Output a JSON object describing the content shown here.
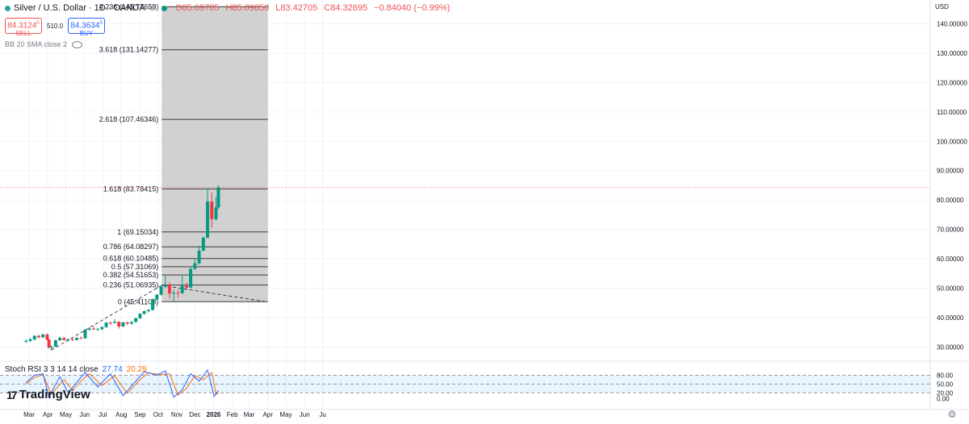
{
  "legend": {
    "symbol": "Silver / U.S. Dollar · 1D · OANDA",
    "open": "O85.09785",
    "high": "H85.09850",
    "low": "L83.42705",
    "close": "C84.32695",
    "change": "−0.84040 (−0.99%)"
  },
  "trade": {
    "sell_price": "84.3124",
    "sell_sup": "0",
    "sell_label": "SELL",
    "spread": "510.0",
    "buy_price": "84.3634",
    "buy_sup": "0",
    "buy_label": "BUY"
  },
  "indicators": {
    "bb": "BB 20 SMA close 2",
    "stoch_label": "Stoch RSI 3 3 14 14 close",
    "stoch_k": "27.74",
    "stoch_d": "20.29"
  },
  "currency": "USD",
  "logo": {
    "mark": "17",
    "text": "TradingView"
  },
  "colors": {
    "up": "#089981",
    "down": "#f23645",
    "fib_zone": "#d1d1d1",
    "k_line": "#2962ff",
    "d_line": "#ff6d00",
    "price_line": "#ef5350"
  },
  "chart_data": {
    "type": "candlestick",
    "price_axis": [
      "140.00000",
      "130.00000",
      "120.00000",
      "110.00000",
      "100.00000",
      "90.00000",
      "80.00000",
      "70.00000",
      "60.00000",
      "50.00000",
      "40.00000",
      "30.00000"
    ],
    "time_axis": [
      "Mar",
      "Apr",
      "May",
      "Jun",
      "Jul",
      "Aug",
      "Sep",
      "Oct",
      "Nov",
      "Dec",
      "2026",
      "Feb",
      "Mar",
      "Apr",
      "May",
      "Jun",
      "Ju"
    ],
    "fib_levels": [
      {
        "ratio": "0",
        "value": 45.41103,
        "label": "0 (45.41103)"
      },
      {
        "ratio": "0.236",
        "value": 51.06935,
        "label": "0.236 (51.06935)"
      },
      {
        "ratio": "0.382",
        "value": 54.51653,
        "label": "0.382 (54.51653)"
      },
      {
        "ratio": "0.5",
        "value": 57.31069,
        "label": "0.5 (57.31069)"
      },
      {
        "ratio": "0.618",
        "value": 60.10485,
        "label": "0.618 (60.10485)"
      },
      {
        "ratio": "0.786",
        "value": 64.08297,
        "label": "0.786 (64.08297)"
      },
      {
        "ratio": "1",
        "value": 69.15034,
        "label": "1 (69.15034)"
      },
      {
        "ratio": "1.618",
        "value": 83.78415,
        "label": "1.618 (83.78415)"
      },
      {
        "ratio": "2.618",
        "value": 107.46346,
        "label": "2.618 (107.46346)"
      },
      {
        "ratio": "3.618",
        "value": 131.14277,
        "label": "3.618 (131.14277)"
      },
      {
        "ratio": "4.236",
        "value": 145.77658,
        "label": "4.236 (145.77658)"
      }
    ],
    "fib_time_range": [
      "2025-10-07",
      "2026-04-01"
    ],
    "trend_points": [
      {
        "date": "2025-04-07",
        "value": 29.0
      },
      {
        "date": "2025-10-07",
        "value": 51.0
      },
      {
        "date": "2026-04-01",
        "value": 45.3
      }
    ],
    "candles": [
      {
        "date": "2025-02-24",
        "o": 32.0,
        "h": 32.6,
        "l": 31.4,
        "c": 32.1
      },
      {
        "date": "2025-03-03",
        "o": 32.1,
        "h": 33.1,
        "l": 31.7,
        "c": 32.6
      },
      {
        "date": "2025-03-10",
        "o": 32.6,
        "h": 34.0,
        "l": 32.3,
        "c": 33.8
      },
      {
        "date": "2025-03-17",
        "o": 33.8,
        "h": 34.2,
        "l": 33.0,
        "c": 33.3
      },
      {
        "date": "2025-03-24",
        "o": 33.3,
        "h": 34.5,
        "l": 33.0,
        "c": 34.3
      },
      {
        "date": "2025-03-31",
        "o": 34.3,
        "h": 34.6,
        "l": 32.3,
        "c": 32.5
      },
      {
        "date": "2025-04-03",
        "o": 32.5,
        "h": 32.8,
        "l": 29.5,
        "c": 29.8
      },
      {
        "date": "2025-04-07",
        "o": 29.8,
        "h": 30.5,
        "l": 28.8,
        "c": 30.2
      },
      {
        "date": "2025-04-14",
        "o": 30.2,
        "h": 32.5,
        "l": 30.0,
        "c": 32.3
      },
      {
        "date": "2025-04-21",
        "o": 32.3,
        "h": 33.5,
        "l": 32.0,
        "c": 33.1
      },
      {
        "date": "2025-04-28",
        "o": 33.1,
        "h": 33.4,
        "l": 32.1,
        "c": 32.4
      },
      {
        "date": "2025-05-05",
        "o": 32.4,
        "h": 33.0,
        "l": 31.9,
        "c": 32.6
      },
      {
        "date": "2025-05-12",
        "o": 32.6,
        "h": 33.0,
        "l": 32.1,
        "c": 32.4
      },
      {
        "date": "2025-05-19",
        "o": 32.4,
        "h": 33.4,
        "l": 32.2,
        "c": 33.1
      },
      {
        "date": "2025-05-26",
        "o": 33.1,
        "h": 33.6,
        "l": 32.7,
        "c": 33.0
      },
      {
        "date": "2025-06-02",
        "o": 33.0,
        "h": 36.0,
        "l": 32.8,
        "c": 35.9
      },
      {
        "date": "2025-06-09",
        "o": 35.9,
        "h": 36.8,
        "l": 35.5,
        "c": 36.3
      },
      {
        "date": "2025-06-16",
        "o": 36.3,
        "h": 37.1,
        "l": 35.8,
        "c": 36.0
      },
      {
        "date": "2025-06-23",
        "o": 36.0,
        "h": 36.5,
        "l": 35.6,
        "c": 36.1
      },
      {
        "date": "2025-06-30",
        "o": 36.1,
        "h": 37.0,
        "l": 35.7,
        "c": 36.8
      },
      {
        "date": "2025-07-07",
        "o": 36.8,
        "h": 38.5,
        "l": 36.5,
        "c": 38.3
      },
      {
        "date": "2025-07-14",
        "o": 38.3,
        "h": 38.8,
        "l": 37.5,
        "c": 38.2
      },
      {
        "date": "2025-07-21",
        "o": 38.2,
        "h": 39.5,
        "l": 38.0,
        "c": 38.6
      },
      {
        "date": "2025-07-28",
        "o": 38.6,
        "h": 38.8,
        "l": 36.3,
        "c": 37.0
      },
      {
        "date": "2025-08-04",
        "o": 37.0,
        "h": 38.5,
        "l": 36.8,
        "c": 38.4
      },
      {
        "date": "2025-08-11",
        "o": 38.4,
        "h": 38.6,
        "l": 37.4,
        "c": 38.0
      },
      {
        "date": "2025-08-18",
        "o": 38.0,
        "h": 38.8,
        "l": 37.5,
        "c": 38.5
      },
      {
        "date": "2025-08-25",
        "o": 38.5,
        "h": 40.0,
        "l": 38.3,
        "c": 39.8
      },
      {
        "date": "2025-09-01",
        "o": 39.8,
        "h": 41.5,
        "l": 39.6,
        "c": 41.3
      },
      {
        "date": "2025-09-08",
        "o": 41.3,
        "h": 42.4,
        "l": 41.0,
        "c": 42.2
      },
      {
        "date": "2025-09-15",
        "o": 42.2,
        "h": 43.0,
        "l": 41.8,
        "c": 42.6
      },
      {
        "date": "2025-09-22",
        "o": 42.6,
        "h": 46.5,
        "l": 42.4,
        "c": 46.2
      },
      {
        "date": "2025-09-29",
        "o": 46.2,
        "h": 48.0,
        "l": 45.8,
        "c": 47.8
      },
      {
        "date": "2025-10-06",
        "o": 47.8,
        "h": 51.0,
        "l": 47.5,
        "c": 50.5
      },
      {
        "date": "2025-10-13",
        "o": 50.5,
        "h": 54.5,
        "l": 50.0,
        "c": 51.3
      },
      {
        "date": "2025-10-20",
        "o": 51.3,
        "h": 52.0,
        "l": 46.5,
        "c": 48.2
      },
      {
        "date": "2025-10-27",
        "o": 48.2,
        "h": 49.5,
        "l": 45.5,
        "c": 48.5
      },
      {
        "date": "2025-11-03",
        "o": 48.5,
        "h": 49.5,
        "l": 46.8,
        "c": 48.3
      },
      {
        "date": "2025-11-10",
        "o": 48.3,
        "h": 54.5,
        "l": 48.0,
        "c": 50.8
      },
      {
        "date": "2025-11-17",
        "o": 50.8,
        "h": 52.0,
        "l": 49.5,
        "c": 50.2
      },
      {
        "date": "2025-11-24",
        "o": 50.2,
        "h": 57.0,
        "l": 50.0,
        "c": 56.6
      },
      {
        "date": "2025-12-01",
        "o": 56.6,
        "h": 59.8,
        "l": 56.2,
        "c": 58.5
      },
      {
        "date": "2025-12-08",
        "o": 58.5,
        "h": 64.5,
        "l": 58.0,
        "c": 62.8
      },
      {
        "date": "2025-12-15",
        "o": 62.8,
        "h": 67.5,
        "l": 62.5,
        "c": 67.2
      },
      {
        "date": "2025-12-22",
        "o": 67.2,
        "h": 84.0,
        "l": 67.0,
        "c": 79.5
      },
      {
        "date": "2025-12-29",
        "o": 79.5,
        "h": 82.5,
        "l": 70.5,
        "c": 73.5
      },
      {
        "date": "2026-01-05",
        "o": 73.5,
        "h": 81.0,
        "l": 73.0,
        "c": 77.5
      },
      {
        "date": "2026-01-09",
        "o": 77.5,
        "h": 85.1,
        "l": 77.0,
        "c": 84.3
      }
    ],
    "stoch_axis": [
      "80.00",
      "50.00",
      "20.00",
      "0.00"
    ],
    "stoch_k_series": [
      {
        "date": "2025-02-24",
        "v": 55
      },
      {
        "date": "2025-03-10",
        "v": 80
      },
      {
        "date": "2025-03-24",
        "v": 85
      },
      {
        "date": "2025-04-03",
        "v": 5
      },
      {
        "date": "2025-04-21",
        "v": 75
      },
      {
        "date": "2025-05-05",
        "v": 20
      },
      {
        "date": "2025-05-19",
        "v": 55
      },
      {
        "date": "2025-06-02",
        "v": 90
      },
      {
        "date": "2025-06-23",
        "v": 40
      },
      {
        "date": "2025-07-14",
        "v": 85
      },
      {
        "date": "2025-08-04",
        "v": 10
      },
      {
        "date": "2025-08-25",
        "v": 60
      },
      {
        "date": "2025-09-08",
        "v": 92
      },
      {
        "date": "2025-09-29",
        "v": 80
      },
      {
        "date": "2025-10-13",
        "v": 95
      },
      {
        "date": "2025-10-27",
        "v": 5
      },
      {
        "date": "2025-11-10",
        "v": 30
      },
      {
        "date": "2025-11-24",
        "v": 85
      },
      {
        "date": "2025-12-08",
        "v": 60
      },
      {
        "date": "2025-12-22",
        "v": 98
      },
      {
        "date": "2026-01-02",
        "v": 8
      },
      {
        "date": "2026-01-09",
        "v": 28
      }
    ],
    "stoch_d_series": [
      {
        "date": "2025-02-24",
        "v": 50
      },
      {
        "date": "2025-03-10",
        "v": 72
      },
      {
        "date": "2025-03-24",
        "v": 82
      },
      {
        "date": "2025-04-07",
        "v": 15
      },
      {
        "date": "2025-04-28",
        "v": 65
      },
      {
        "date": "2025-05-12",
        "v": 28
      },
      {
        "date": "2025-05-26",
        "v": 60
      },
      {
        "date": "2025-06-09",
        "v": 85
      },
      {
        "date": "2025-06-30",
        "v": 45
      },
      {
        "date": "2025-07-21",
        "v": 78
      },
      {
        "date": "2025-08-11",
        "v": 18
      },
      {
        "date": "2025-09-01",
        "v": 65
      },
      {
        "date": "2025-09-15",
        "v": 88
      },
      {
        "date": "2025-10-06",
        "v": 82
      },
      {
        "date": "2025-10-20",
        "v": 85
      },
      {
        "date": "2025-11-03",
        "v": 12
      },
      {
        "date": "2025-11-17",
        "v": 35
      },
      {
        "date": "2025-12-01",
        "v": 78
      },
      {
        "date": "2025-12-15",
        "v": 65
      },
      {
        "date": "2025-12-29",
        "v": 90
      },
      {
        "date": "2026-01-05",
        "v": 15
      },
      {
        "date": "2026-01-09",
        "v": 20
      }
    ]
  }
}
